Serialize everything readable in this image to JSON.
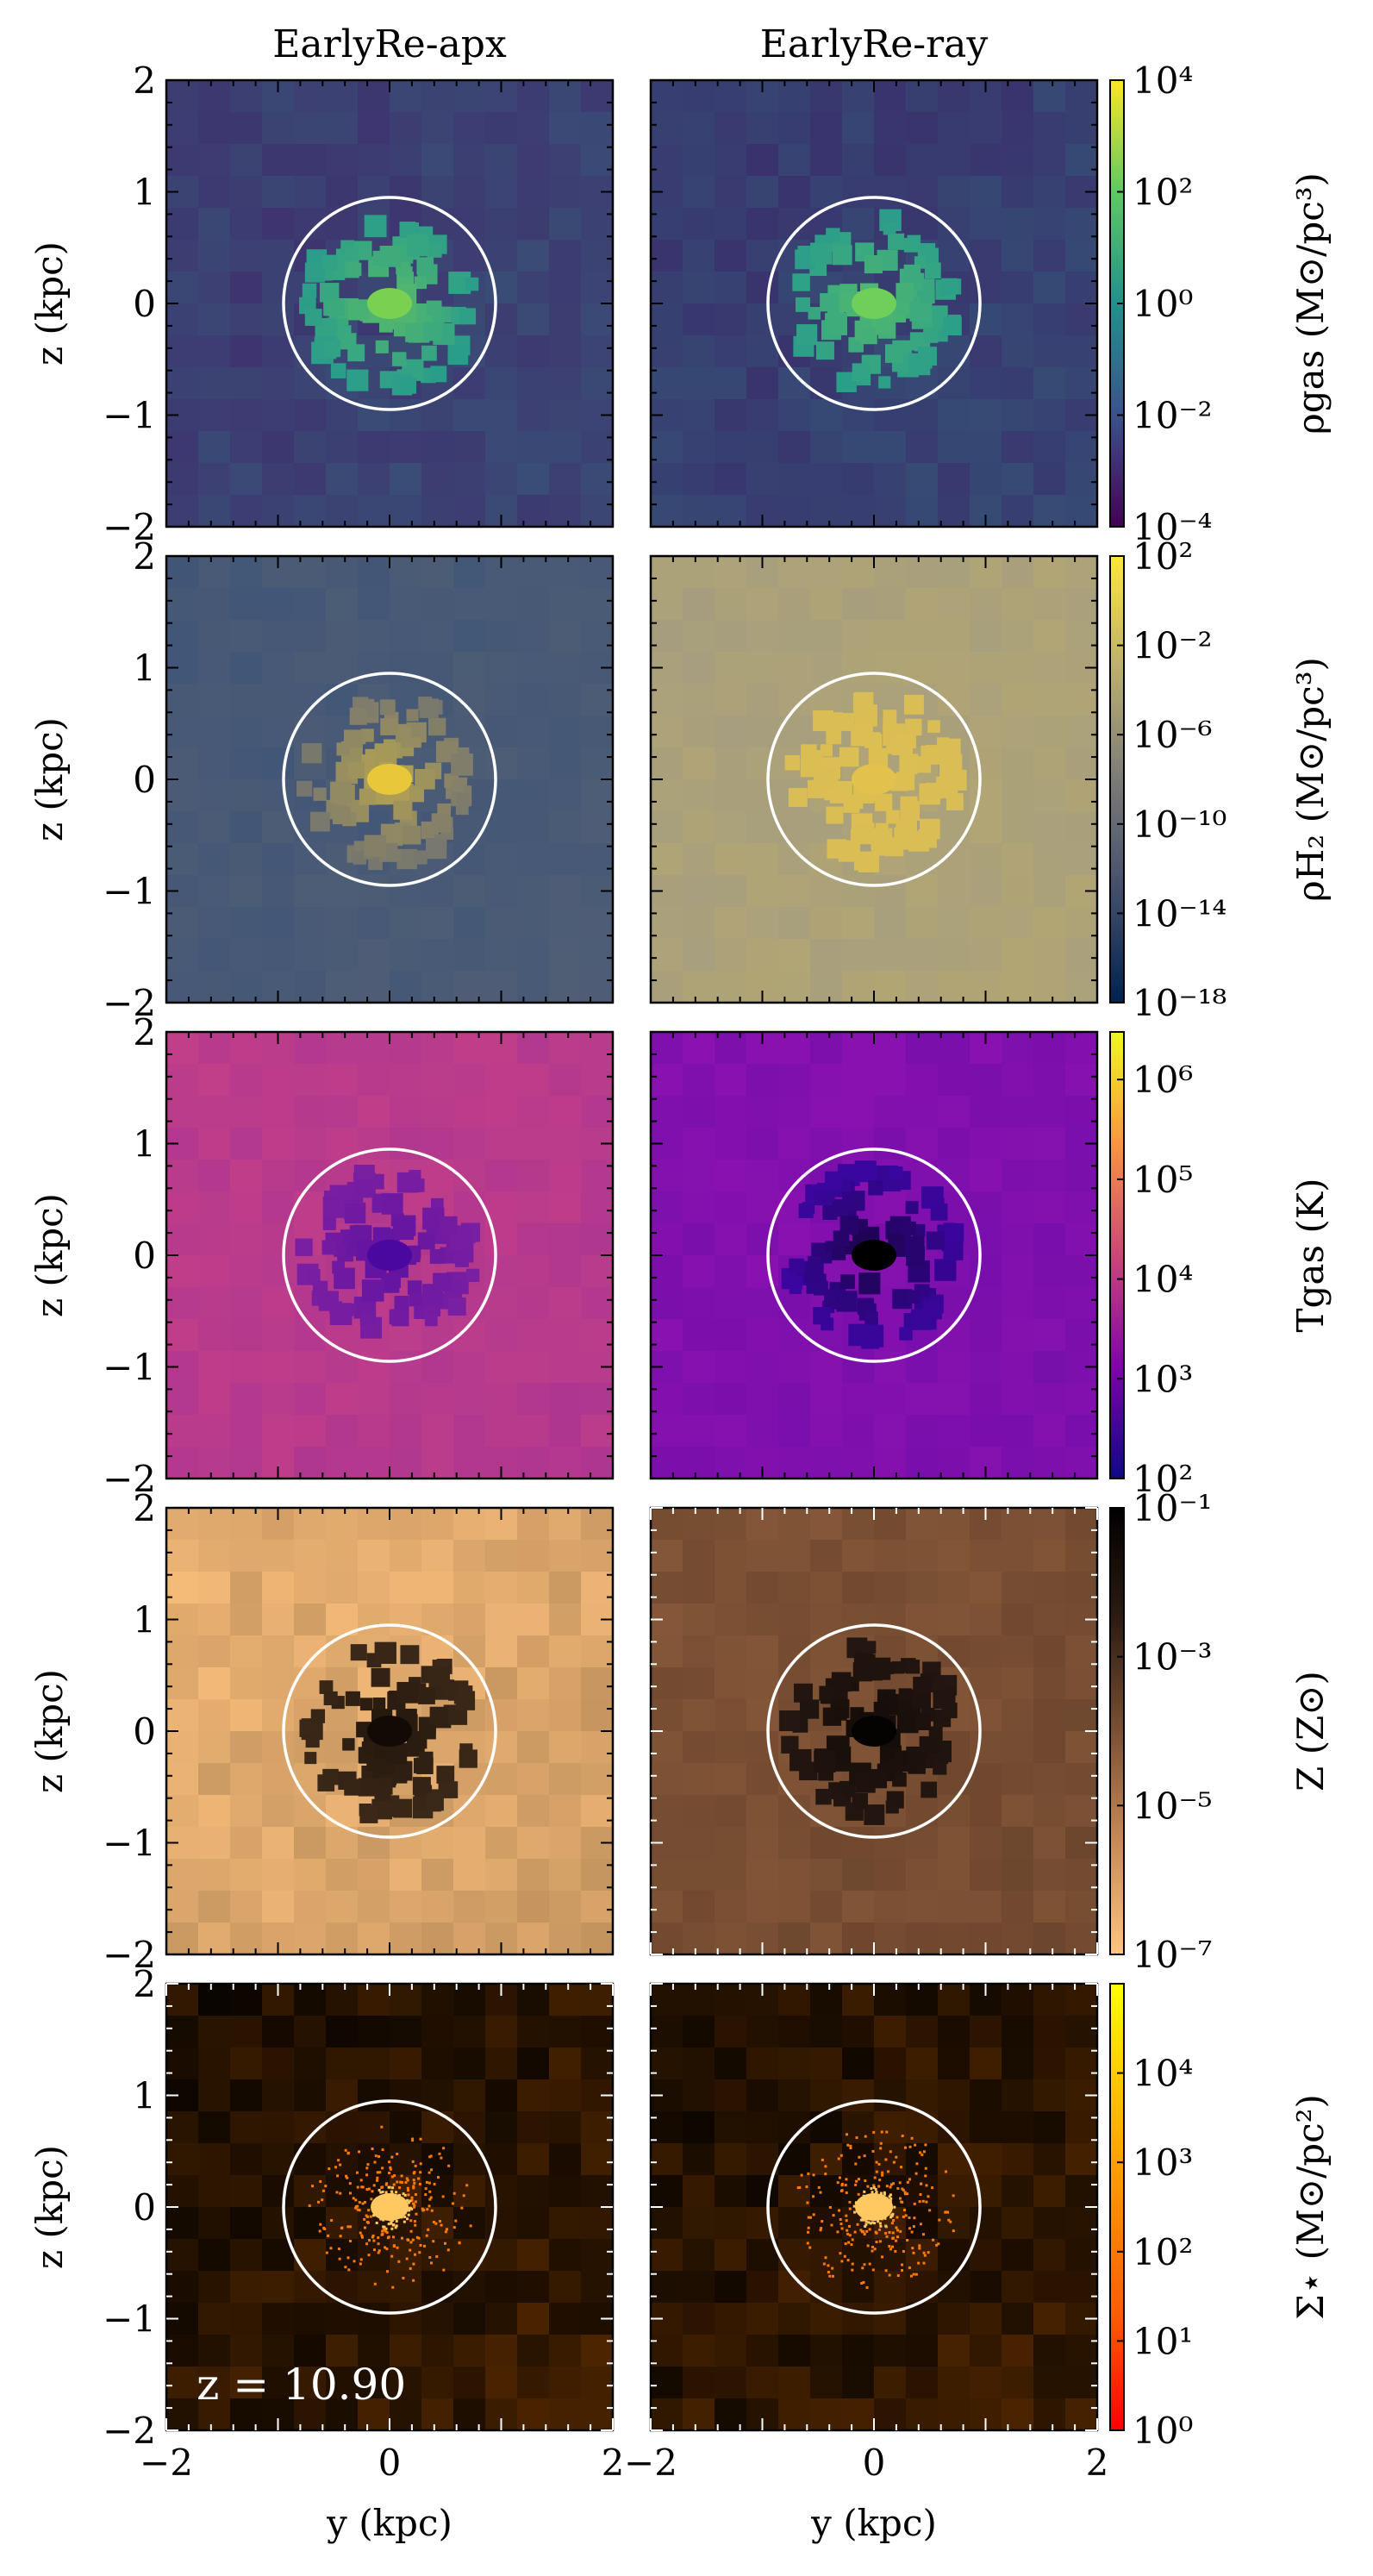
{
  "columns": [
    "EarlyRe-apx",
    "EarlyRe-ray"
  ],
  "redshift_label": "z = 10.90",
  "chart_data": [
    {
      "type": "heatmap",
      "xlabel": "y (kpc)",
      "ylabel": "z (kpc)",
      "xlim": [
        -2,
        2
      ],
      "ylim": [
        -2,
        2
      ],
      "x_ticks": [
        "−2",
        "0",
        "2"
      ],
      "y_ticks": [
        "−2",
        "−1",
        "0",
        "1",
        "2"
      ],
      "aperture_circle_radius_kpc": 0.95,
      "panels": [
        {
          "quantity": "gas density",
          "colorbar_label": "ρgas (M⊙/pc³)",
          "scale": "log",
          "colorbar_ticks": [
            "10⁴",
            "10²",
            "10⁰",
            "10⁻²",
            "10⁻⁴"
          ],
          "colorbar_range": [
            0.0001,
            10000.0
          ],
          "colormap": [
            "#440154",
            "#3b528b",
            "#21918c",
            "#5ec962",
            "#fde725"
          ],
          "maps": {
            "EarlyRe-apx": {
              "background": "#3f2e6e",
              "core": "#2a9d8a",
              "center": "#7ad151"
            },
            "EarlyRe-ray": {
              "background": "#3a2c6c",
              "core": "#2a9d8a",
              "center": "#6fcf5a"
            }
          }
        },
        {
          "quantity": "H2 density",
          "colorbar_label": "ρH₂ (M⊙/pc³)",
          "scale": "log",
          "colorbar_ticks": [
            "10²",
            "10⁻²",
            "10⁻⁶",
            "10⁻¹⁰",
            "10⁻¹⁴",
            "10⁻¹⁸"
          ],
          "colorbar_range": [
            1e-18,
            100.0
          ],
          "colormap": [
            "#00224e",
            "#434e6c",
            "#7c7b78",
            "#bcaf6f",
            "#fee838"
          ],
          "maps": {
            "EarlyRe-apx": {
              "background": "#3f5477",
              "core": "#76766f",
              "center": "#e8c83a"
            },
            "EarlyRe-ray": {
              "background": "#a39c80",
              "core": "#d9bd55",
              "center": "#e2c24c"
            }
          }
        },
        {
          "quantity": "gas temperature",
          "colorbar_label": "Tgas (K)",
          "scale": "log",
          "colorbar_ticks": [
            "10⁶",
            "10⁵",
            "10⁴",
            "10³",
            "10²"
          ],
          "colorbar_range": [
            100.0,
            3000000.0
          ],
          "colormap": [
            "#0d0887",
            "#7e03a8",
            "#cc4778",
            "#f89540",
            "#f0f921"
          ],
          "maps": {
            "EarlyRe-apx": {
              "background": "#c44088",
              "core": "#7a1fa2",
              "center": "#4a08a0"
            },
            "EarlyRe-ray": {
              "background": "#8f12b0",
              "core": "#3a06a0",
              "center": "#000000"
            }
          }
        },
        {
          "quantity": "metallicity",
          "colorbar_label": "Z (Z⊙)",
          "scale": "log",
          "colorbar_ticks": [
            "10⁻¹",
            "10⁻³",
            "10⁻⁵",
            "10⁻⁷"
          ],
          "colorbar_range": [
            1e-07,
            0.1
          ],
          "colormap": [
            "#ffc580",
            "#c98a58",
            "#7a5034",
            "#2e1c12",
            "#000000"
          ],
          "maps": {
            "EarlyRe-apx": {
              "background": "#fcc07c",
              "core": "#3b2818",
              "center": "#120a05"
            },
            "EarlyRe-ray": {
              "background": "#8a5a3a",
              "core": "#241610",
              "center": "#050302"
            }
          }
        },
        {
          "quantity": "stellar surface density",
          "colorbar_label": "Σ⋆ (M⊙/pc²)",
          "scale": "log",
          "colorbar_ticks": [
            "10⁴",
            "10³",
            "10²",
            "10¹",
            "10⁰"
          ],
          "colorbar_range": [
            1,
            100000.0
          ],
          "colormap": [
            "#ff0000",
            "#ff5a00",
            "#ff8c00",
            "#ffc000",
            "#ffff00"
          ],
          "maps": {
            "EarlyRe-apx": {
              "background": "#000000",
              "core": "#ff7a00",
              "center": "#ffc860"
            },
            "EarlyRe-ray": {
              "background": "#000000",
              "core": "#ff7a00",
              "center": "#ffc860"
            }
          }
        }
      ]
    }
  ]
}
